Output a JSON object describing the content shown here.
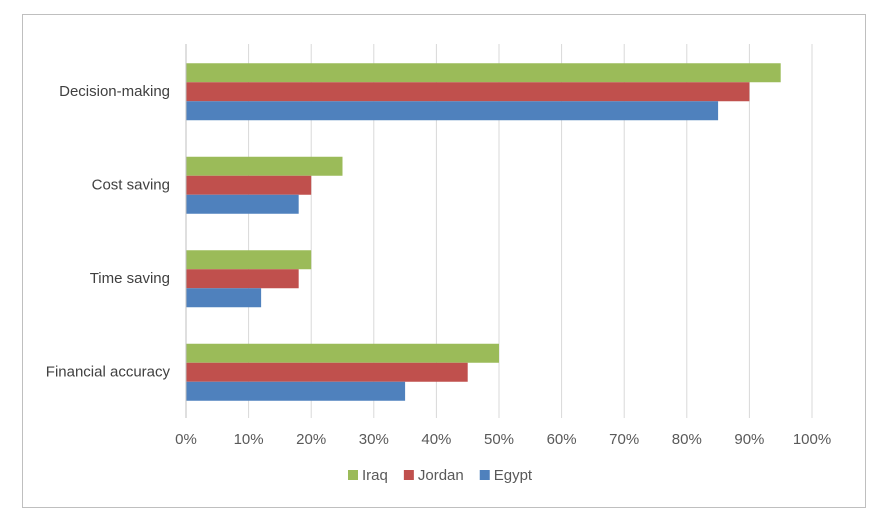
{
  "chart_data": {
    "type": "bar",
    "orientation": "horizontal",
    "categories": [
      "Decision-making",
      "Cost saving",
      "Time saving",
      "Financial accuracy"
    ],
    "series": [
      {
        "name": "Iraq",
        "color": "#9bbb59",
        "values": [
          0.95,
          0.25,
          0.2,
          0.5
        ]
      },
      {
        "name": "Jordan",
        "color": "#c0504d",
        "values": [
          0.9,
          0.2,
          0.18,
          0.45
        ]
      },
      {
        "name": "Egypt",
        "color": "#4f81bd",
        "values": [
          0.85,
          0.18,
          0.12,
          0.35
        ]
      }
    ],
    "xlim": [
      0,
      1
    ],
    "xticks": [
      "0%",
      "10%",
      "20%",
      "30%",
      "40%",
      "50%",
      "60%",
      "70%",
      "80%",
      "90%",
      "100%"
    ],
    "title": "",
    "xlabel": "",
    "ylabel": "",
    "grid": "vertical",
    "legend_position": "bottom"
  }
}
